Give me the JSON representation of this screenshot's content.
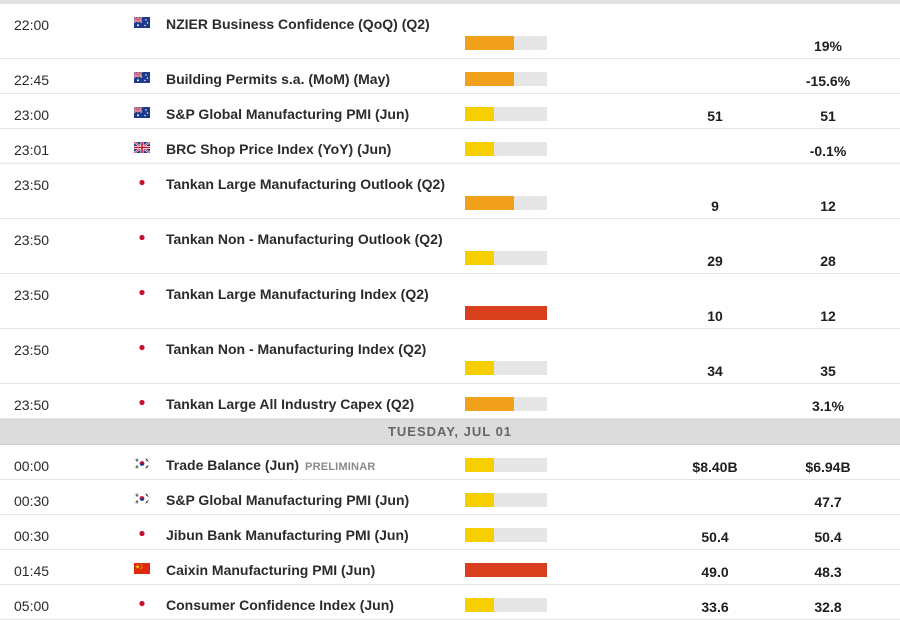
{
  "colors": {
    "high": "#d8401d",
    "medium": "#f0a01a",
    "low": "#f5cf00",
    "empty": "#e6e6e6"
  },
  "rows_before": [
    {
      "time": "22:00",
      "country": "australia",
      "flag_icon": "australia-flag-icon",
      "event": "NZIER Business Confidence (QoQ) (Q2)",
      "tag": "",
      "importance": "medium",
      "actual": "",
      "forecast": "19%",
      "tall": true
    },
    {
      "time": "22:45",
      "country": "australia",
      "flag_icon": "australia-flag-icon",
      "event": "Building Permits s.a. (MoM) (May)",
      "tag": "",
      "importance": "medium",
      "actual": "",
      "forecast": "-15.6%",
      "tall": false
    },
    {
      "time": "23:00",
      "country": "australia",
      "flag_icon": "australia-flag-icon",
      "event": "S&P Global Manufacturing PMI (Jun)",
      "tag": "",
      "importance": "low",
      "actual": "51",
      "forecast": "51",
      "tall": false
    },
    {
      "time": "23:01",
      "country": "uk",
      "flag_icon": "uk-flag-icon",
      "event": "BRC Shop Price Index (YoY) (Jun)",
      "tag": "",
      "importance": "low",
      "actual": "",
      "forecast": "-0.1%",
      "tall": false
    },
    {
      "time": "23:50",
      "country": "japan",
      "flag_icon": "japan-flag-icon",
      "event": "Tankan Large Manufacturing Outlook (Q2)",
      "tag": "",
      "importance": "medium",
      "actual": "9",
      "forecast": "12",
      "tall": true
    },
    {
      "time": "23:50",
      "country": "japan",
      "flag_icon": "japan-flag-icon",
      "event": "Tankan Non - Manufacturing Outlook (Q2)",
      "tag": "",
      "importance": "low",
      "actual": "29",
      "forecast": "28",
      "tall": true
    },
    {
      "time": "23:50",
      "country": "japan",
      "flag_icon": "japan-flag-icon",
      "event": "Tankan Large Manufacturing Index (Q2)",
      "tag": "",
      "importance": "high",
      "actual": "10",
      "forecast": "12",
      "tall": true
    },
    {
      "time": "23:50",
      "country": "japan",
      "flag_icon": "japan-flag-icon",
      "event": "Tankan Non - Manufacturing Index (Q2)",
      "tag": "",
      "importance": "low",
      "actual": "34",
      "forecast": "35",
      "tall": true
    },
    {
      "time": "23:50",
      "country": "japan",
      "flag_icon": "japan-flag-icon",
      "event": "Tankan Large All Industry Capex (Q2)",
      "tag": "",
      "importance": "medium",
      "actual": "",
      "forecast": "3.1%",
      "tall": false
    }
  ],
  "section_label": "TUESDAY, JUL 01",
  "rows_after": [
    {
      "time": "00:00",
      "country": "korea",
      "flag_icon": "south-korea-flag-icon",
      "event": "Trade Balance (Jun)",
      "tag": "PRELIMINAR",
      "importance": "low",
      "actual": "$8.40B",
      "forecast": "$6.94B",
      "tall": false
    },
    {
      "time": "00:30",
      "country": "korea",
      "flag_icon": "south-korea-flag-icon",
      "event": "S&P Global Manufacturing PMI (Jun)",
      "tag": "",
      "importance": "low",
      "actual": "",
      "forecast": "47.7",
      "tall": false
    },
    {
      "time": "00:30",
      "country": "japan",
      "flag_icon": "japan-flag-icon",
      "event": "Jibun Bank Manufacturing PMI (Jun)",
      "tag": "",
      "importance": "low",
      "actual": "50.4",
      "forecast": "50.4",
      "tall": false
    },
    {
      "time": "01:45",
      "country": "china",
      "flag_icon": "china-flag-icon",
      "event": "Caixin Manufacturing PMI (Jun)",
      "tag": "",
      "importance": "high",
      "actual": "49.0",
      "forecast": "48.3",
      "tall": false
    },
    {
      "time": "05:00",
      "country": "japan",
      "flag_icon": "japan-flag-icon",
      "event": "Consumer Confidence Index (Jun)",
      "tag": "",
      "importance": "low",
      "actual": "33.6",
      "forecast": "32.8",
      "tall": false
    }
  ]
}
